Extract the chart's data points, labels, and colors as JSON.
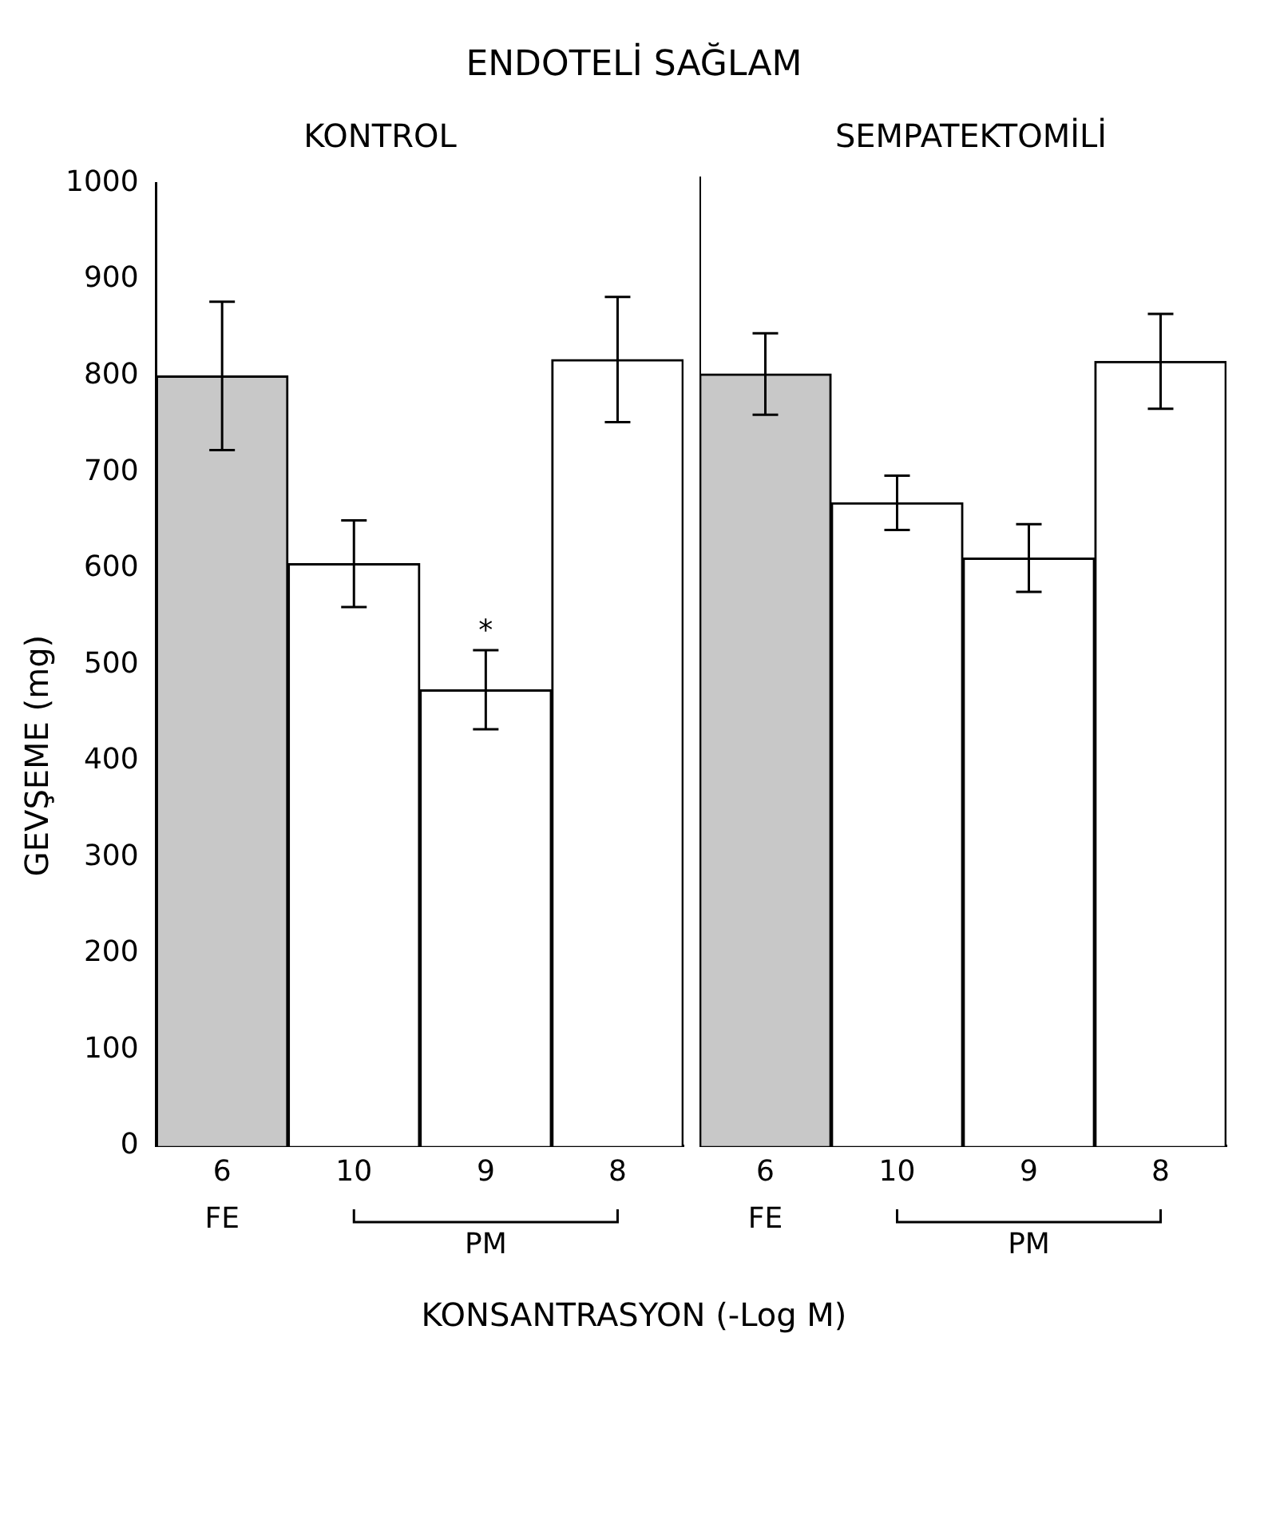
{
  "chart_data": [
    {
      "type": "bar",
      "title": "ENDOTELİ SAĞLAM",
      "subtitle": "KONTROL",
      "ylabel": "GEVŞEME (mg)",
      "categories": [
        "6",
        "10",
        "9",
        "8"
      ],
      "values": [
        800,
        605,
        474,
        817
      ],
      "errors": [
        77,
        45,
        41,
        65
      ],
      "colors": [
        "#c8c8c8",
        "#ffffff",
        "#ffffff",
        "#ffffff"
      ],
      "ylim": [
        0,
        1000
      ],
      "yticks": [
        0,
        100,
        200,
        300,
        400,
        500,
        600,
        700,
        800,
        900,
        1000
      ],
      "annotations": [
        "FE",
        "PM",
        "*"
      ]
    },
    {
      "type": "bar",
      "subtitle": "SEMPATEKTOMİLİ",
      "xlabel": "KONSANTRASYON (-Log M)",
      "categories": [
        "6",
        "10",
        "9",
        "8"
      ],
      "values": [
        797,
        664,
        607,
        810
      ],
      "errors": [
        42,
        28,
        35,
        49
      ],
      "colors": [
        "#c8c8c8",
        "#ffffff",
        "#ffffff",
        "#ffffff"
      ],
      "ylim": [
        0,
        1000
      ],
      "yticks": [
        0,
        100,
        200,
        300,
        400,
        500,
        600,
        700,
        800,
        900,
        1000
      ],
      "tick_labels": "x",
      "annotations": [
        "FE",
        "PM"
      ]
    }
  ]
}
